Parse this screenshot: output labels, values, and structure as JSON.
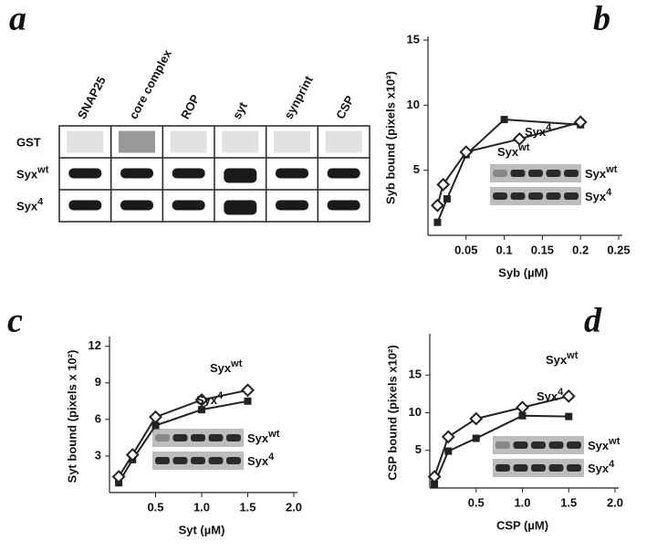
{
  "blot": {
    "label": "a",
    "columns": [
      "SNAP25",
      "core complex",
      "ROP",
      "syt",
      "synprint",
      "CSP"
    ],
    "rows": [
      {
        "text": "GST"
      },
      {
        "text": "Syx",
        "sup": "wt"
      },
      {
        "text": "Syx",
        "sup": "4"
      }
    ]
  },
  "chart_data": [
    {
      "type": "line",
      "label": "b",
      "xlabel": "Syb (µM)",
      "ylabel": "Syb bound (pixels x10²)",
      "xlim": [
        0,
        0.25
      ],
      "ylim": [
        0,
        15
      ],
      "xticks": [
        0.05,
        0.1,
        0.15,
        0.2,
        0.25
      ],
      "yticks": [
        5,
        10,
        15
      ],
      "series": [
        {
          "marker": "square",
          "color": "#222222",
          "x": [
            0.0125,
            0.025,
            0.05,
            0.1,
            0.2
          ],
          "values": [
            1,
            2.8,
            6.2,
            8.9,
            8.5
          ]
        },
        {
          "marker": "diamond",
          "color": "#222222",
          "x": [
            0.0125,
            0.02,
            0.05,
            0.12,
            0.2
          ],
          "values": [
            2.3,
            3.9,
            6.4,
            7.4,
            8.7
          ]
        }
      ],
      "annotations": [
        {
          "text": "Syx",
          "sup": "wt"
        },
        {
          "text": "Syx",
          "sup": "4"
        }
      ],
      "inset_labels": [
        {
          "text": "Syx",
          "sup": "wt"
        },
        {
          "text": "Syx",
          "sup": "4"
        }
      ]
    },
    {
      "type": "line",
      "label": "c",
      "xlabel": "Syt (µM)",
      "ylabel": "Syt bound (pixels x 10²)",
      "xlim": [
        0,
        2
      ],
      "ylim": [
        0,
        12.5
      ],
      "xticks": [
        0.5,
        {
          "value": 1,
          "label": "1.0"
        },
        1.5,
        {
          "value": 2,
          "label": "2.0"
        }
      ],
      "yticks": [
        3,
        6,
        9,
        12
      ],
      "series": [
        {
          "marker": "square",
          "color": "#222222",
          "x": [
            0.1,
            0.25,
            0.5,
            1.0,
            1.5
          ],
          "values": [
            0.8,
            2.7,
            5.5,
            6.8,
            7.5
          ]
        },
        {
          "marker": "diamond",
          "color": "#222222",
          "x": [
            0.1,
            0.25,
            0.5,
            1.0,
            1.5
          ],
          "values": [
            1.3,
            3.1,
            6.2,
            7.6,
            8.4
          ]
        }
      ],
      "annotations": [
        {
          "text": "Syx",
          "sup": "wt"
        },
        {
          "text": "Syx",
          "sup": "4"
        }
      ],
      "inset_labels": [
        {
          "text": "Syx",
          "sup": "wt"
        },
        {
          "text": "Syx",
          "sup": "4"
        }
      ]
    },
    {
      "type": "line",
      "label": "d",
      "xlabel": "CSP (µM)",
      "ylabel": "CSP bound (pixels x10²)",
      "xlim": [
        0,
        2
      ],
      "ylim": [
        0,
        20
      ],
      "xticks": [
        0.5,
        {
          "value": 1,
          "label": "1.0"
        },
        1.5,
        {
          "value": 2,
          "label": "2.0"
        }
      ],
      "yticks": [
        5,
        10,
        15
      ],
      "series": [
        {
          "marker": "square",
          "color": "#222222",
          "x": [
            0.05,
            0.2,
            0.5,
            1.0,
            1.5
          ],
          "values": [
            0.5,
            4.9,
            6.6,
            9.6,
            9.5
          ]
        },
        {
          "marker": "diamond",
          "color": "#222222",
          "x": [
            0.05,
            0.2,
            0.5,
            1.0,
            1.5
          ],
          "values": [
            1.5,
            6.8,
            9.2,
            10.7,
            12.2
          ]
        }
      ],
      "annotations": [
        {
          "text": "Syx",
          "sup": "wt"
        },
        {
          "text": "Syx",
          "sup": "4"
        }
      ],
      "inset_labels": [
        {
          "text": "Syx",
          "sup": "wt"
        },
        {
          "text": "Syx",
          "sup": "4"
        }
      ]
    }
  ]
}
